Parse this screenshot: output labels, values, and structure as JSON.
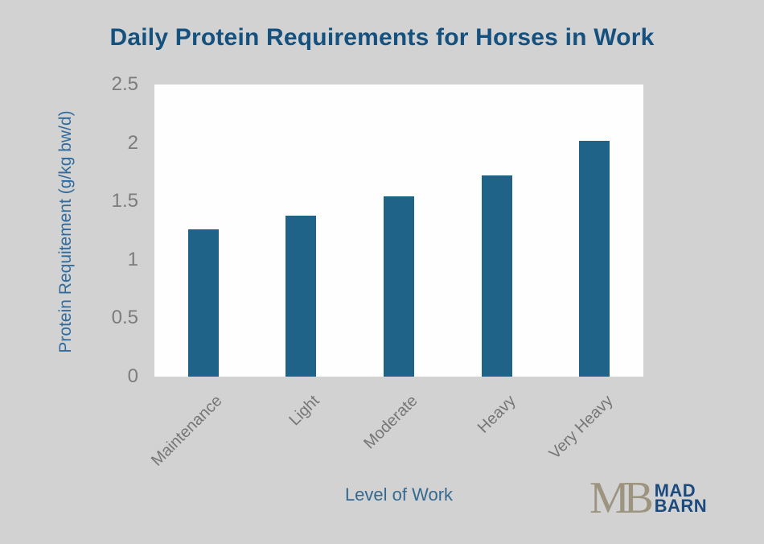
{
  "chart_data": {
    "type": "bar",
    "title": "Daily Protein Requirements for Horses in Work",
    "categories": [
      "Maintenance",
      "Light",
      "Moderate",
      "Heavy",
      "Very Heavy"
    ],
    "values": [
      1.26,
      1.38,
      1.54,
      1.72,
      2.02
    ],
    "xlabel": "Level of Work",
    "ylabel": "Protein Requitement (g/kg bw/d)",
    "ylim": [
      0,
      2.5
    ],
    "yticks": [
      "0",
      "0.5",
      "1",
      "1.5",
      "2",
      "2.5"
    ],
    "grid": false,
    "legend": "none",
    "bar_color": "#1f6488",
    "plot_background": "#fefefe",
    "page_background": "#d2d2d2",
    "title_color": "#15517f",
    "axis_label_color": "#2f6b9e",
    "tick_label_color": "#7c7c7c"
  },
  "logo": {
    "monogram": "MB",
    "line1": "MAD",
    "line2": "BARN"
  }
}
